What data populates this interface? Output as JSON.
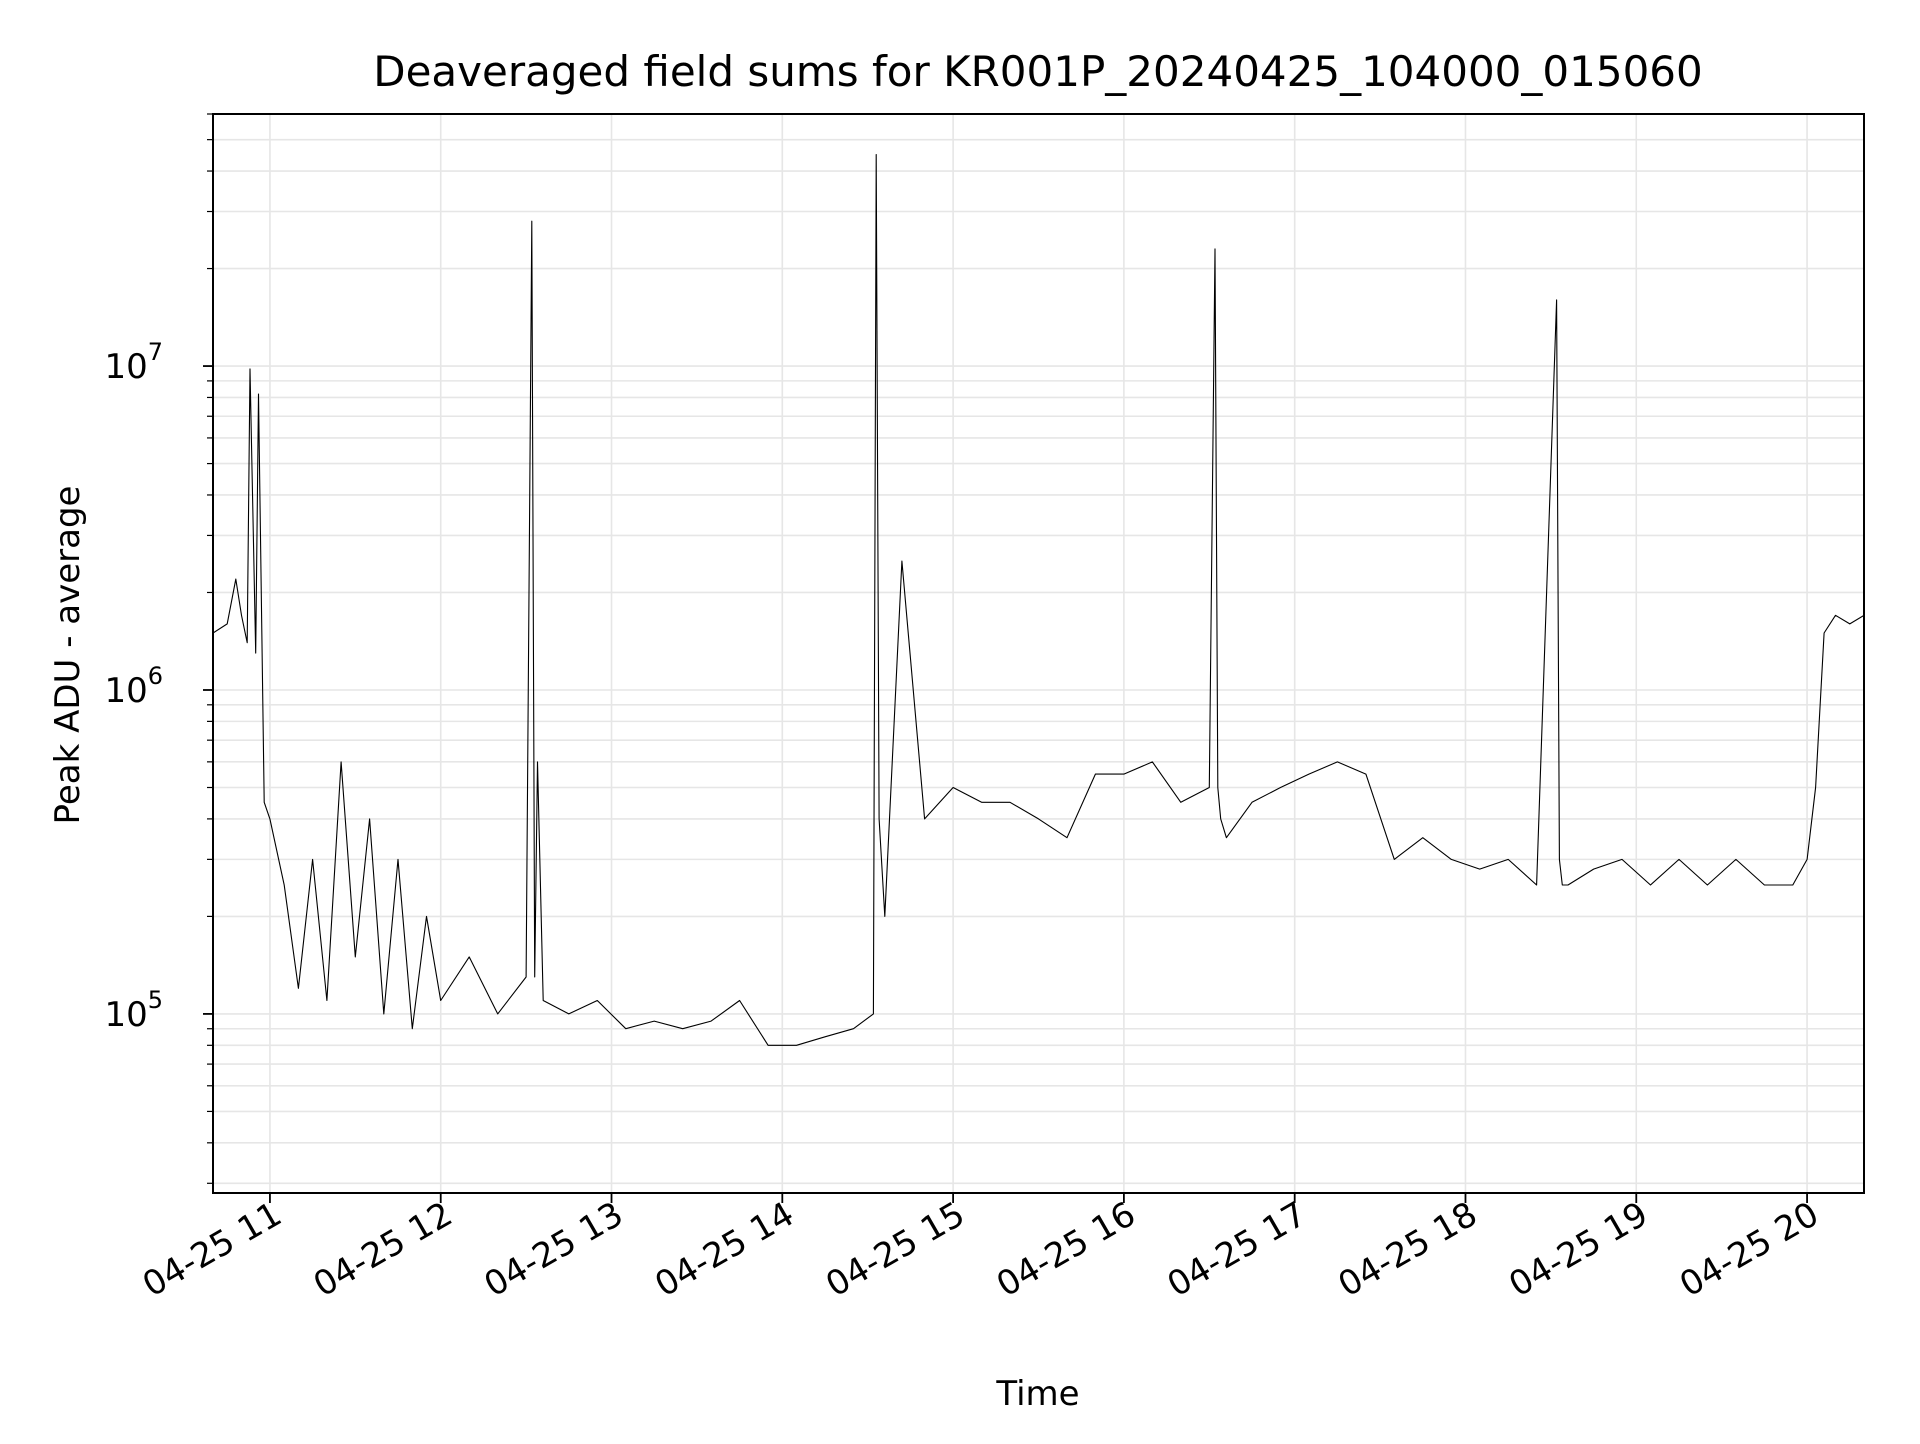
{
  "chart_data": {
    "type": "line",
    "title": "Deaveraged field sums for KR001P_20240425_104000_015060",
    "xlabel": "Time",
    "ylabel": "Peak ADU - average",
    "yscale": "log",
    "xlim": [
      "2024-04-25 10:40",
      "2024-04-25 20:20"
    ],
    "ylim": [
      28000,
      60000000
    ],
    "grid": true,
    "color": "#000000",
    "x_ticks": [
      {
        "label": "04-25 11",
        "t": "2024-04-25 11:00"
      },
      {
        "label": "04-25 12",
        "t": "2024-04-25 12:00"
      },
      {
        "label": "04-25 13",
        "t": "2024-04-25 13:00"
      },
      {
        "label": "04-25 14",
        "t": "2024-04-25 14:00"
      },
      {
        "label": "04-25 15",
        "t": "2024-04-25 15:00"
      },
      {
        "label": "04-25 16",
        "t": "2024-04-25 16:00"
      },
      {
        "label": "04-25 17",
        "t": "2024-04-25 17:00"
      },
      {
        "label": "04-25 18",
        "t": "2024-04-25 18:00"
      },
      {
        "label": "04-25 19",
        "t": "2024-04-25 19:00"
      },
      {
        "label": "04-25 20",
        "t": "2024-04-25 20:00"
      }
    ],
    "y_ticks": [
      {
        "base": "10",
        "exp": "5",
        "value": 100000
      },
      {
        "base": "10",
        "exp": "6",
        "value": 1000000
      },
      {
        "base": "10",
        "exp": "7",
        "value": 10000000
      }
    ],
    "series": [
      {
        "x": [
          "2024-04-25 10:40",
          "2024-04-25 10:45",
          "2024-04-25 10:48",
          "2024-04-25 10:50",
          "2024-04-25 10:52",
          "2024-04-25 10:53",
          "2024-04-25 10:55",
          "2024-04-25 10:56",
          "2024-04-25 10:58",
          "2024-04-25 11:00",
          "2024-04-25 11:05",
          "2024-04-25 11:10",
          "2024-04-25 11:15",
          "2024-04-25 11:20",
          "2024-04-25 11:25",
          "2024-04-25 11:30",
          "2024-04-25 11:35",
          "2024-04-25 11:40",
          "2024-04-25 11:45",
          "2024-04-25 11:50",
          "2024-04-25 11:55",
          "2024-04-25 12:00",
          "2024-04-25 12:10",
          "2024-04-25 12:20",
          "2024-04-25 12:30",
          "2024-04-25 12:32",
          "2024-04-25 12:33",
          "2024-04-25 12:34",
          "2024-04-25 12:36",
          "2024-04-25 12:45",
          "2024-04-25 12:55",
          "2024-04-25 13:05",
          "2024-04-25 13:15",
          "2024-04-25 13:25",
          "2024-04-25 13:35",
          "2024-04-25 13:45",
          "2024-04-25 13:55",
          "2024-04-25 14:05",
          "2024-04-25 14:15",
          "2024-04-25 14:25",
          "2024-04-25 14:32",
          "2024-04-25 14:33",
          "2024-04-25 14:34",
          "2024-04-25 14:36",
          "2024-04-25 14:42",
          "2024-04-25 14:50",
          "2024-04-25 15:00",
          "2024-04-25 15:10",
          "2024-04-25 15:20",
          "2024-04-25 15:30",
          "2024-04-25 15:40",
          "2024-04-25 15:50",
          "2024-04-25 16:00",
          "2024-04-25 16:10",
          "2024-04-25 16:20",
          "2024-04-25 16:30",
          "2024-04-25 16:32",
          "2024-04-25 16:33",
          "2024-04-25 16:34",
          "2024-04-25 16:36",
          "2024-04-25 16:45",
          "2024-04-25 16:55",
          "2024-04-25 17:05",
          "2024-04-25 17:15",
          "2024-04-25 17:25",
          "2024-04-25 17:35",
          "2024-04-25 17:45",
          "2024-04-25 17:55",
          "2024-04-25 18:05",
          "2024-04-25 18:15",
          "2024-04-25 18:25",
          "2024-04-25 18:32",
          "2024-04-25 18:33",
          "2024-04-25 18:34",
          "2024-04-25 18:36",
          "2024-04-25 18:45",
          "2024-04-25 18:55",
          "2024-04-25 19:05",
          "2024-04-25 19:15",
          "2024-04-25 19:25",
          "2024-04-25 19:35",
          "2024-04-25 19:45",
          "2024-04-25 19:55",
          "2024-04-25 20:00",
          "2024-04-25 20:03",
          "2024-04-25 20:06",
          "2024-04-25 20:10",
          "2024-04-25 20:15",
          "2024-04-25 20:20"
        ],
        "y": [
          1500000,
          1600000,
          2200000,
          1700000,
          1400000,
          9800000,
          1300000,
          8200000,
          450000,
          400000,
          250000,
          120000,
          300000,
          110000,
          600000,
          150000,
          400000,
          100000,
          300000,
          90000,
          200000,
          110000,
          150000,
          100000,
          130000,
          28000000,
          130000,
          600000,
          110000,
          100000,
          110000,
          90000,
          95000,
          90000,
          95000,
          110000,
          80000,
          80000,
          85000,
          90000,
          100000,
          45000000,
          400000,
          200000,
          2500000,
          400000,
          500000,
          450000,
          450000,
          400000,
          350000,
          550000,
          550000,
          600000,
          450000,
          500000,
          23000000,
          500000,
          400000,
          350000,
          450000,
          500000,
          550000,
          600000,
          550000,
          300000,
          350000,
          300000,
          280000,
          300000,
          250000,
          16000000,
          300000,
          250000,
          250000,
          280000,
          300000,
          250000,
          300000,
          250000,
          300000,
          250000,
          250000,
          300000,
          500000,
          1500000,
          1700000,
          1600000,
          1700000
        ]
      }
    ]
  }
}
